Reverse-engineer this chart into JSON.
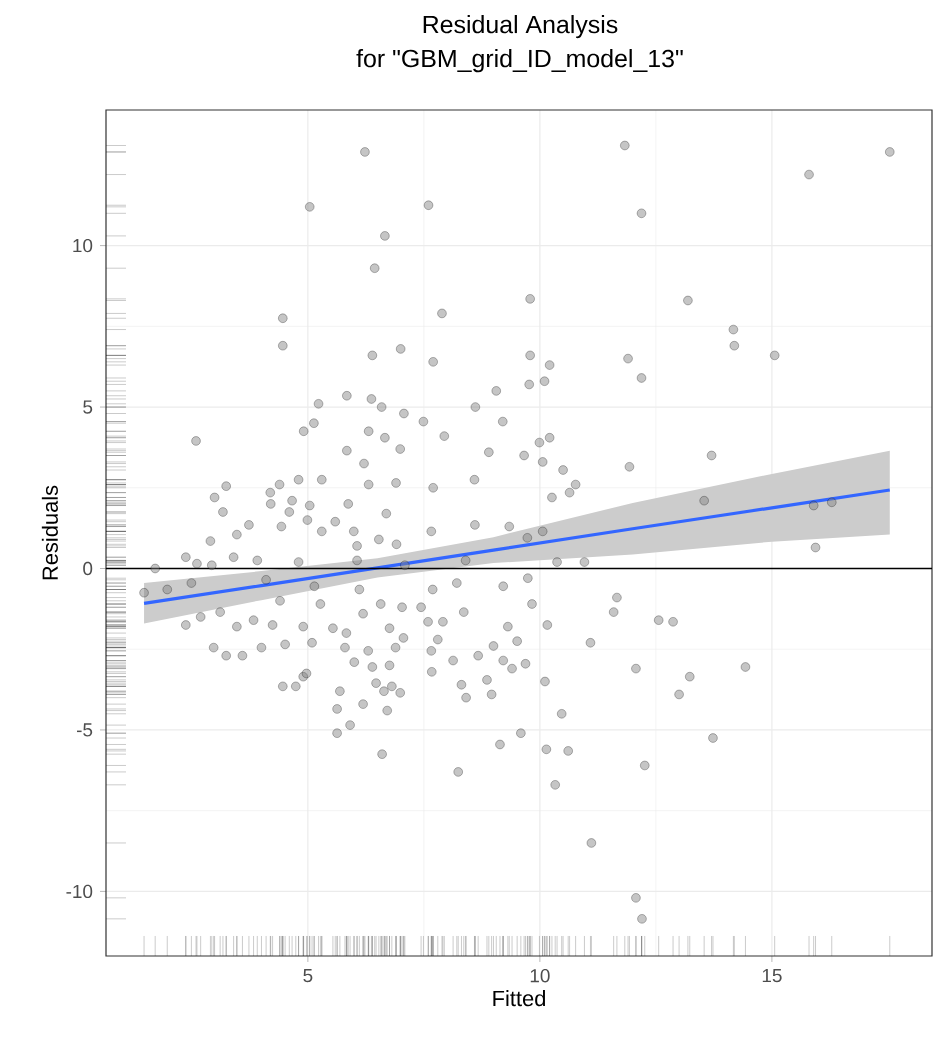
{
  "chart_data": {
    "type": "scatter",
    "title": "Residual Analysis",
    "subtitle": "for \"GBM_grid_ID_model_13\"",
    "xlabel": "Fitted",
    "ylabel": "Residuals",
    "xlim": [
      0.65,
      18.45
    ],
    "ylim": [
      -12,
      14.2
    ],
    "xticks": [
      5,
      10,
      15
    ],
    "yticks": [
      -10,
      -5,
      0,
      5,
      10
    ],
    "grid": true,
    "ref_lines": [
      {
        "axis": "y",
        "value": 0,
        "color": "#000000"
      }
    ],
    "series": [
      {
        "color": "#7f7f7f",
        "marker": "circle",
        "x": [
          6.23,
          11.83,
          17.54,
          15.8,
          12.19,
          5.04,
          7.6,
          6.66,
          6.44,
          9.79,
          13.19,
          7.89,
          4.46,
          4.46,
          14.17,
          14.19,
          7.0,
          6.39,
          9.79,
          15.06,
          7.7,
          11.9,
          10.21,
          12.19,
          10.1,
          9.77,
          9.06,
          5.84,
          5.23,
          6.37,
          6.59,
          8.61,
          7.07,
          7.49,
          9.2,
          5.13,
          4.91,
          6.31,
          6.66,
          7.94,
          10.21,
          2.59,
          9.99,
          6.99,
          5.84,
          8.9,
          13.7,
          9.66,
          6.21,
          10.06,
          11.93,
          10.5,
          5.3,
          4.8,
          8.59,
          10.77,
          3.24,
          6.31,
          6.9,
          4.39,
          7.7,
          4.19,
          10.64,
          2.99,
          10.26,
          13.54,
          4.2,
          5.87,
          4.66,
          5.04,
          3.17,
          6.69,
          4.6,
          5.59,
          3.73,
          4.43,
          4.99,
          8.6,
          9.34,
          15.94,
          10.96,
          10.37,
          3.47,
          2.9,
          5.3,
          5.99,
          6.53,
          6.06,
          6.91,
          7.66,
          10.06,
          9.73,
          15.9,
          16.29,
          1.71,
          2.37,
          2.61,
          2.93,
          3.4,
          3.91,
          4.8,
          6.06,
          7.09,
          8.4,
          1.47,
          2.37,
          2.69,
          2.97,
          3.24,
          3.59,
          4.0,
          4.51,
          4.46,
          4.74,
          4.9,
          4.97,
          5.09,
          4.9,
          4.24,
          3.47,
          3.11,
          3.83,
          5.27,
          5.54,
          5.83,
          5.8,
          5.69,
          5.63,
          5.63,
          5.91,
          6.0,
          6.19,
          6.3,
          6.47,
          6.39,
          6.6,
          6.71,
          6.64,
          6.81,
          6.99,
          6.76,
          6.89,
          7.06,
          6.76,
          7.03,
          6.19,
          6.57,
          7.44,
          7.66,
          7.67,
          7.59,
          7.91,
          7.8,
          8.13,
          8.24,
          8.31,
          8.41,
          8.36,
          8.21,
          8.67,
          8.86,
          8.96,
          9.0,
          9.14,
          9.21,
          9.31,
          9.4,
          9.51,
          9.59,
          9.69,
          9.83,
          9.74,
          9.21,
          10.11,
          10.14,
          10.16,
          10.33,
          10.47,
          10.61,
          11.09,
          11.11,
          11.59,
          11.66,
          12.07,
          12.07,
          12.2,
          12.26,
          12.56,
          12.87,
          13.0,
          13.23,
          13.73,
          14.43,
          2.49,
          1.97,
          4.1,
          4.4,
          5.14,
          6.11,
          7.69
        ],
        "values": [
          12.9,
          13.1,
          12.9,
          12.2,
          11.0,
          11.2,
          11.25,
          10.3,
          9.3,
          8.35,
          8.3,
          7.9,
          7.75,
          6.9,
          7.4,
          6.9,
          6.8,
          6.6,
          6.6,
          6.6,
          6.4,
          6.5,
          6.3,
          5.9,
          5.8,
          5.7,
          5.5,
          5.35,
          5.1,
          5.25,
          5.0,
          5.0,
          4.8,
          4.55,
          4.55,
          4.5,
          4.25,
          4.25,
          4.05,
          4.1,
          4.05,
          3.95,
          3.9,
          3.7,
          3.65,
          3.6,
          3.5,
          3.5,
          3.25,
          3.3,
          3.15,
          3.05,
          2.75,
          2.75,
          2.75,
          2.6,
          2.55,
          2.6,
          2.65,
          2.6,
          2.5,
          2.35,
          2.35,
          2.2,
          2.2,
          2.1,
          2.0,
          2.0,
          2.1,
          1.95,
          1.75,
          1.7,
          1.75,
          1.45,
          1.35,
          1.3,
          1.5,
          1.35,
          1.3,
          0.65,
          0.2,
          0.2,
          1.05,
          0.85,
          1.15,
          1.15,
          0.9,
          0.7,
          0.75,
          1.15,
          1.15,
          0.95,
          1.95,
          2.05,
          0.0,
          0.35,
          0.15,
          0.1,
          0.35,
          0.25,
          0.2,
          0.25,
          0.1,
          0.25,
          -0.75,
          -1.75,
          -1.5,
          -2.45,
          -2.7,
          -2.7,
          -2.45,
          -2.35,
          -3.65,
          -3.65,
          -3.35,
          -3.25,
          -2.3,
          -1.8,
          -1.75,
          -1.8,
          -1.35,
          -1.6,
          -1.1,
          -1.85,
          -2.0,
          -2.45,
          -3.8,
          -4.35,
          -5.1,
          -4.85,
          -2.9,
          -4.2,
          -2.55,
          -3.55,
          -3.05,
          -5.75,
          -4.4,
          -3.8,
          -3.65,
          -3.85,
          -3.0,
          -2.45,
          -2.15,
          -1.85,
          -1.2,
          -1.4,
          -1.1,
          -1.2,
          -2.55,
          -3.2,
          -1.65,
          -1.65,
          -2.2,
          -2.85,
          -6.3,
          -3.6,
          -4.0,
          -1.35,
          -0.45,
          -2.7,
          -3.45,
          -3.9,
          -2.4,
          -5.45,
          -2.85,
          -1.8,
          -3.1,
          -2.25,
          -5.1,
          -2.95,
          -1.1,
          -0.3,
          -0.55,
          -3.5,
          -5.6,
          -1.75,
          -6.7,
          -4.5,
          -5.65,
          -2.3,
          -8.5,
          -1.35,
          -0.9,
          -3.1,
          -10.2,
          -10.85,
          -6.1,
          -1.6,
          -1.65,
          -3.9,
          -3.35,
          -5.25,
          -3.05,
          -0.45,
          -0.65,
          -0.35,
          -1.0,
          -0.55,
          -0.65,
          -0.65
        ]
      },
      {
        "type": "line",
        "color": "#3366ff",
        "marker": "none",
        "x": [
          1.47,
          4,
          6.5,
          9,
          12,
          15,
          17.54
        ],
        "values": [
          -1.08,
          -0.53,
          0.02,
          0.57,
          1.23,
          1.88,
          2.43
        ],
        "lower": [
          -1.7,
          -0.98,
          -0.28,
          0.17,
          0.43,
          0.83,
          1.05
        ],
        "upper": [
          -0.45,
          -0.08,
          0.32,
          0.97,
          2.03,
          2.93,
          3.65
        ]
      }
    ]
  }
}
